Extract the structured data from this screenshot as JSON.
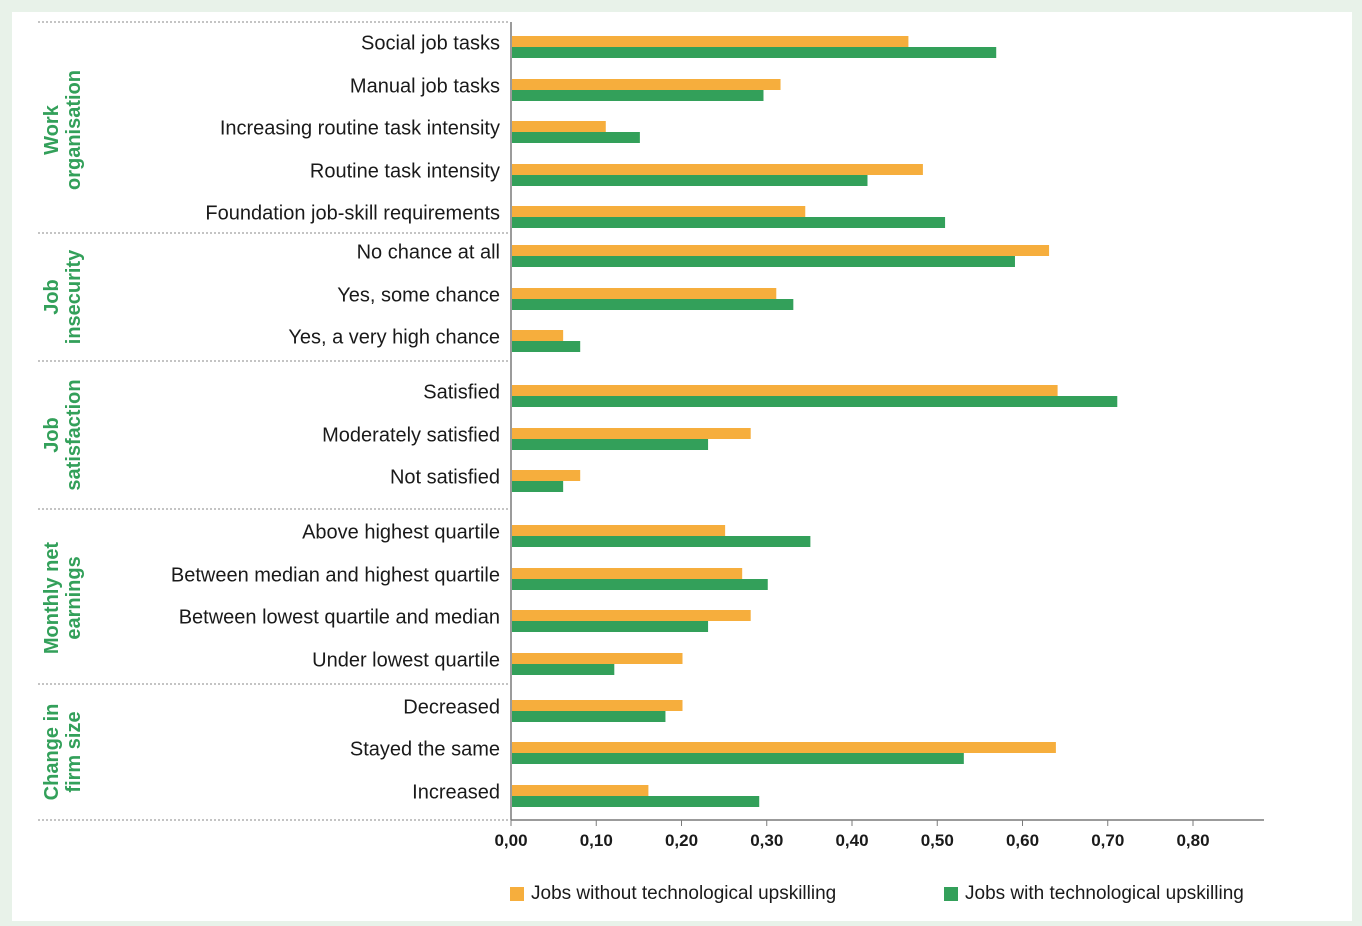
{
  "colors": {
    "without": "#f6ae3d",
    "with": "#33a05a",
    "group_label": "#33a05a",
    "background": "#e8f2e9",
    "text": "#1a1a1a"
  },
  "chart_data": {
    "type": "bar",
    "orientation": "horizontal",
    "title": "",
    "xlabel": "",
    "ylabel": "",
    "xlim": [
      0,
      0.85
    ],
    "x_ticks": [
      "0,00",
      "0,10",
      "0,20",
      "0,30",
      "0,40",
      "0,50",
      "0,60",
      "0,70",
      "0,80"
    ],
    "grid": false,
    "legend_position": "bottom-right",
    "series_names": [
      "Jobs without technological upskilling",
      "Jobs with technological upskilling"
    ],
    "groups": [
      {
        "label": [
          "Work",
          "organisation"
        ],
        "items": [
          {
            "label": "Social job tasks",
            "without": 0.465,
            "with": 0.568
          },
          {
            "label": "Manual job tasks",
            "without": 0.315,
            "with": 0.295
          },
          {
            "label": "Increasing routine task intensity",
            "without": 0.11,
            "with": 0.15
          },
          {
            "label": "Routine task intensity",
            "without": 0.482,
            "with": 0.417
          },
          {
            "label": "Foundation job-skill requirements",
            "without": 0.344,
            "with": 0.508
          }
        ]
      },
      {
        "label": [
          "Job",
          "insecurity"
        ],
        "items": [
          {
            "label": "No chance at all",
            "without": 0.63,
            "with": 0.59
          },
          {
            "label": "Yes, some chance",
            "without": 0.31,
            "with": 0.33
          },
          {
            "label": "Yes, a very high chance",
            "without": 0.06,
            "with": 0.08
          }
        ]
      },
      {
        "label": [
          "Job",
          "satisfaction"
        ],
        "items": [
          {
            "label": "Satisfied",
            "without": 0.64,
            "with": 0.71
          },
          {
            "label": "Moderately satisfied",
            "without": 0.28,
            "with": 0.23
          },
          {
            "label": "Not satisfied",
            "without": 0.08,
            "with": 0.06
          }
        ]
      },
      {
        "label": [
          "Monthly net",
          "earnings"
        ],
        "items": [
          {
            "label": "Above highest quartile",
            "without": 0.25,
            "with": 0.35
          },
          {
            "label": "Between median and highest quartile",
            "without": 0.27,
            "with": 0.3
          },
          {
            "label": "Between lowest quartile and median",
            "without": 0.28,
            "with": 0.23
          },
          {
            "label": "Under lowest quartile",
            "without": 0.2,
            "with": 0.12
          }
        ]
      },
      {
        "label": [
          "Change in",
          "firm size"
        ],
        "items": [
          {
            "label": "Decreased",
            "without": 0.2,
            "with": 0.18
          },
          {
            "label": "Stayed the same",
            "without": 0.638,
            "with": 0.53
          },
          {
            "label": "Increased",
            "without": 0.16,
            "with": 0.29
          }
        ]
      }
    ]
  }
}
